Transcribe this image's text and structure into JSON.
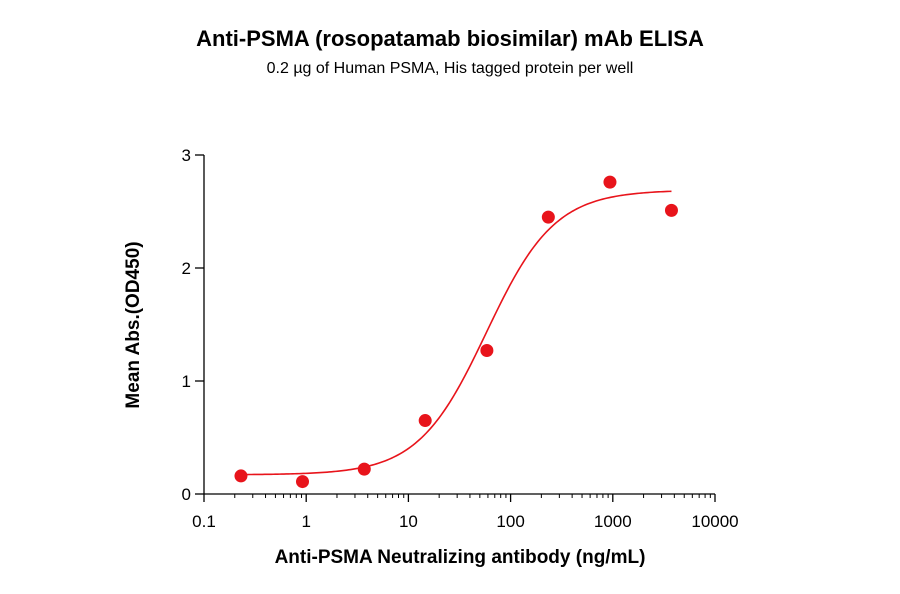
{
  "chart_data": {
    "type": "scatter",
    "title": "Anti-PSMA (rosopatamab biosimilar) mAb ELISA",
    "subtitle": "0.2 µg of Human PSMA, His tagged protein per well",
    "xlabel": "Anti-PSMA Neutralizing antibody (ng/mL)",
    "ylabel": "Mean Abs.(OD450)",
    "x_scale": "log",
    "xlim": [
      0.1,
      10000
    ],
    "ylim": [
      0,
      3
    ],
    "x_ticks": [
      "0.1",
      "1",
      "10",
      "100",
      "1000",
      "10000"
    ],
    "y_ticks": [
      "0",
      "1",
      "2",
      "3"
    ],
    "grid": false,
    "series": [
      {
        "x": [
          0.23,
          0.92,
          3.7,
          14.6,
          58.6,
          234,
          938,
          3750
        ],
        "y": [
          0.16,
          0.11,
          0.22,
          0.65,
          1.27,
          2.45,
          2.76,
          2.51
        ],
        "color": "#e8141b"
      }
    ],
    "fit": {
      "type": "4PL",
      "bottom": 0.17,
      "top": 2.69,
      "ec50": 58,
      "hill": 1.3,
      "color": "#e8141b"
    }
  }
}
